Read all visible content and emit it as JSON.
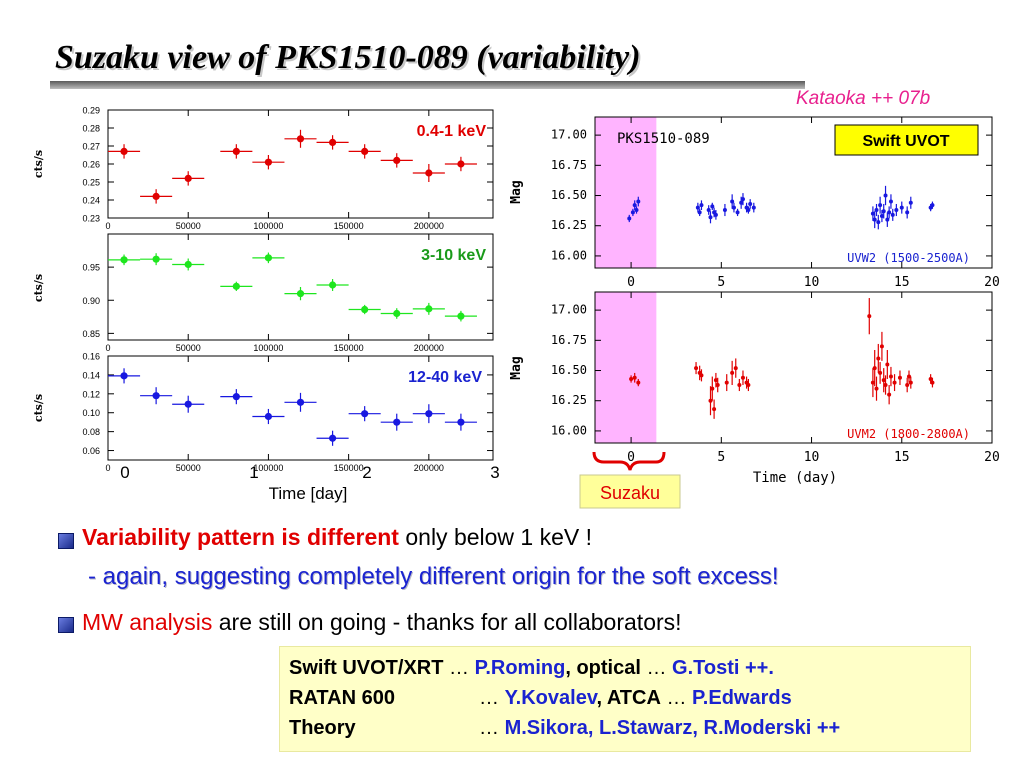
{
  "slide": {
    "title": "Suzaku view of PKS1510-089 (variability)",
    "credit": "Kataoka ++ 07b"
  },
  "bullets": {
    "b1_red": "Variability pattern is different",
    "b1_rest": " only below 1 keV !",
    "b1_sub": "- again, suggesting completely different origin for the soft excess!",
    "b2_red": "MW analysis",
    "b2_rest": " are still on going  - thanks for all collaborators!"
  },
  "collaborators": {
    "row1_a": "Swift UVOT/XRT",
    "row1_b": " … ",
    "row1_c": "P.Roming",
    "row1_d": ", optical",
    "row1_e": " … ",
    "row1_f": "G.Tosti ++.",
    "row2_a": "RATAN 600",
    "row2_b": "… ",
    "row2_c": "Y.Kovalev",
    "row2_d": ",   ATCA",
    "row2_e": "  … ",
    "row2_f": "P.Edwards",
    "row3_a": "Theory",
    "row3_b": "…  ",
    "row3_c": "M.Sikora, L.Stawarz, R.Moderski ++"
  },
  "colors": {
    "red": "#e00000",
    "green": "#1ee61e",
    "blue": "#1818e0",
    "magenta_band": "#ffb4ff",
    "uvot_box": "#ffff00",
    "suzaku_box": "#ffff9a",
    "brace": "#e00000",
    "cap_blue": "#1a23d0"
  },
  "chart_data": [
    {
      "type": "scatter",
      "label": "0.4-1 keV",
      "ylabel": "cts/s",
      "ylim": [
        0.23,
        0.29
      ],
      "yticks": [
        "0.23",
        "0.24",
        "0.25",
        "0.26",
        "0.27",
        "0.28",
        "0.29"
      ],
      "xlim": [
        0,
        240000
      ],
      "xticks": [
        "0",
        "50000",
        "100000",
        "150000",
        "200000"
      ],
      "x": [
        10000,
        30000,
        50000,
        80000,
        100000,
        120000,
        140000,
        160000,
        180000,
        200000,
        220000
      ],
      "x_err": [
        10000,
        10000,
        10000,
        10000,
        10000,
        10000,
        10000,
        10000,
        10000,
        10000,
        10000
      ],
      "y": [
        0.267,
        0.242,
        0.252,
        0.267,
        0.261,
        0.274,
        0.272,
        0.267,
        0.262,
        0.255,
        0.26
      ],
      "y_err": [
        0.004,
        0.004,
        0.004,
        0.004,
        0.004,
        0.005,
        0.004,
        0.004,
        0.004,
        0.005,
        0.004
      ],
      "color": "red"
    },
    {
      "type": "scatter",
      "label": "3-10 keV",
      "ylabel": "cts/s",
      "ylim": [
        0.84,
        1.0
      ],
      "yticks": [
        "0.85",
        "0.90",
        "0.95"
      ],
      "xlim": [
        0,
        240000
      ],
      "xticks": [
        "0",
        "50000",
        "100000",
        "150000",
        "200000"
      ],
      "x": [
        10000,
        30000,
        50000,
        80000,
        100000,
        120000,
        140000,
        160000,
        180000,
        200000,
        220000
      ],
      "x_err": [
        10000,
        10000,
        10000,
        10000,
        10000,
        10000,
        10000,
        10000,
        10000,
        10000,
        10000
      ],
      "y": [
        0.961,
        0.962,
        0.954,
        0.921,
        0.964,
        0.91,
        0.923,
        0.886,
        0.88,
        0.887,
        0.876
      ],
      "y_err": [
        0.008,
        0.009,
        0.009,
        0.007,
        0.008,
        0.01,
        0.009,
        0.007,
        0.008,
        0.009,
        0.008
      ],
      "color": "green"
    },
    {
      "type": "scatter",
      "label": "12-40 keV",
      "ylabel": "cts/s",
      "ylim": [
        0.05,
        0.16
      ],
      "yticks": [
        "0.06",
        "0.08",
        "0.10",
        "0.12",
        "0.14",
        "0.16"
      ],
      "xlim": [
        0,
        240000
      ],
      "xticks": [
        "0",
        "50000",
        "100000",
        "150000",
        "200000"
      ],
      "x": [
        10000,
        30000,
        50000,
        80000,
        100000,
        120000,
        140000,
        160000,
        180000,
        200000,
        220000
      ],
      "x_err": [
        10000,
        10000,
        10000,
        10000,
        10000,
        10000,
        10000,
        10000,
        10000,
        10000,
        10000
      ],
      "y": [
        0.139,
        0.118,
        0.109,
        0.117,
        0.096,
        0.111,
        0.073,
        0.099,
        0.09,
        0.099,
        0.09
      ],
      "y_err": [
        0.008,
        0.009,
        0.009,
        0.008,
        0.008,
        0.01,
        0.008,
        0.008,
        0.009,
        0.01,
        0.009
      ],
      "color": "blue"
    },
    {
      "type": "scatter",
      "label": "UVW2 (1500-2500A)",
      "title_in_plot": "PKS1510-089",
      "badge": "Swift UVOT",
      "ylabel": "Mag",
      "ylim": [
        15.9,
        17.15
      ],
      "y_inverted": false,
      "yticks": [
        "16.00",
        "16.25",
        "16.50",
        "16.75",
        "17.00"
      ],
      "xlim": [
        -2,
        20
      ],
      "xticks": [
        "0",
        "5",
        "10",
        "15",
        "20"
      ],
      "highlight_band": [
        -2,
        1.4
      ],
      "x": [
        -0.1,
        0.1,
        0.2,
        0.3,
        0.4,
        3.7,
        3.8,
        3.9,
        4.3,
        4.4,
        4.5,
        4.6,
        4.7,
        5.2,
        5.6,
        5.7,
        5.9,
        6.1,
        6.2,
        6.4,
        6.5,
        6.6,
        6.8,
        13.4,
        13.5,
        13.6,
        13.7,
        13.8,
        13.9,
        14.0,
        14.1,
        14.2,
        14.3,
        14.4,
        14.5,
        14.7,
        15.0,
        15.3,
        15.5,
        16.6,
        16.7
      ],
      "y": [
        16.31,
        16.36,
        16.42,
        16.38,
        16.45,
        16.4,
        16.36,
        16.42,
        16.38,
        16.32,
        16.41,
        16.36,
        16.34,
        16.38,
        16.45,
        16.4,
        16.36,
        16.44,
        16.47,
        16.4,
        16.38,
        16.43,
        16.4,
        16.35,
        16.3,
        16.38,
        16.28,
        16.42,
        16.33,
        16.37,
        16.5,
        16.3,
        16.36,
        16.45,
        16.34,
        16.38,
        16.4,
        16.36,
        16.44,
        16.4,
        16.42
      ],
      "y_err": [
        0.03,
        0.03,
        0.04,
        0.03,
        0.04,
        0.04,
        0.03,
        0.04,
        0.04,
        0.05,
        0.03,
        0.04,
        0.04,
        0.05,
        0.06,
        0.04,
        0.03,
        0.05,
        0.05,
        0.04,
        0.03,
        0.04,
        0.04,
        0.06,
        0.07,
        0.05,
        0.06,
        0.07,
        0.05,
        0.06,
        0.08,
        0.06,
        0.05,
        0.06,
        0.05,
        0.05,
        0.05,
        0.05,
        0.05,
        0.03,
        0.03
      ],
      "color": "blue"
    },
    {
      "type": "scatter",
      "label": "UVM2 (1800-2800A)",
      "xlabel": "Time (day)",
      "ylabel": "Mag",
      "ylim": [
        15.9,
        17.15
      ],
      "yticks": [
        "16.00",
        "16.25",
        "16.50",
        "16.75",
        "17.00"
      ],
      "xlim": [
        -2,
        20
      ],
      "xticks": [
        "0",
        "5",
        "10",
        "15",
        "20"
      ],
      "highlight_band": [
        -2,
        1.4
      ],
      "x": [
        0.0,
        0.2,
        0.4,
        3.6,
        3.8,
        3.9,
        4.4,
        4.5,
        4.6,
        4.7,
        4.8,
        5.3,
        5.6,
        5.8,
        6.0,
        6.2,
        6.4,
        6.5,
        13.2,
        13.4,
        13.5,
        13.6,
        13.7,
        13.8,
        13.9,
        14.0,
        14.1,
        14.2,
        14.3,
        14.4,
        14.6,
        14.9,
        15.3,
        15.4,
        15.5,
        16.6,
        16.7
      ],
      "y": [
        16.43,
        16.44,
        16.4,
        16.52,
        16.48,
        16.46,
        16.25,
        16.35,
        16.18,
        16.42,
        16.38,
        16.4,
        16.48,
        16.52,
        16.38,
        16.44,
        16.4,
        16.38,
        16.95,
        16.4,
        16.52,
        16.35,
        16.6,
        16.48,
        16.7,
        16.42,
        16.38,
        16.55,
        16.3,
        16.45,
        16.4,
        16.44,
        16.38,
        16.45,
        16.4,
        16.43,
        16.4
      ],
      "y_err": [
        0.03,
        0.04,
        0.03,
        0.05,
        0.06,
        0.05,
        0.12,
        0.1,
        0.08,
        0.06,
        0.06,
        0.07,
        0.1,
        0.08,
        0.05,
        0.06,
        0.05,
        0.05,
        0.15,
        0.12,
        0.15,
        0.1,
        0.12,
        0.09,
        0.12,
        0.1,
        0.08,
        0.12,
        0.08,
        0.08,
        0.07,
        0.06,
        0.06,
        0.05,
        0.05,
        0.04,
        0.04
      ],
      "color": "red"
    }
  ],
  "axes_text": {
    "time_ticks": [
      "0",
      "1",
      "2",
      "3"
    ],
    "time_label": "Time [day]",
    "suzaku_label": "Suzaku"
  }
}
